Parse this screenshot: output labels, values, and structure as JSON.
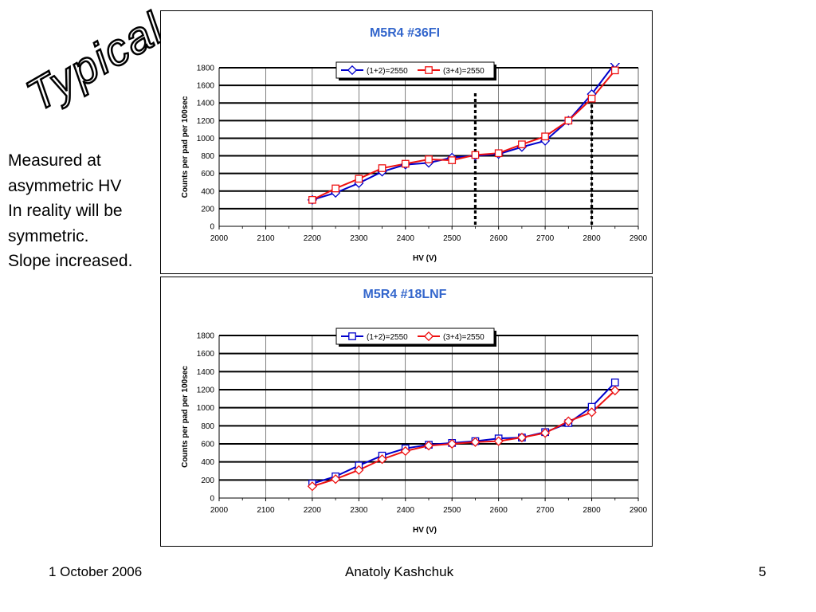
{
  "slide": {
    "title": "Typical",
    "note_lines": [
      "Measured at",
      "asymmetric HV",
      "In reality will be",
      "symmetric.",
      "Slope increased."
    ],
    "footer": {
      "date": "1 October 2006",
      "author": "Anatoly Kashchuk",
      "page": "5"
    }
  },
  "colors": {
    "series_a": "#0000cc",
    "series_b": "#ee1111",
    "title": "#3366cc"
  },
  "chart_data": [
    {
      "type": "line",
      "title": "M5R4 #36FI",
      "xlabel": "HV (V)",
      "ylabel": "Counts  per pad per 100sec",
      "xlim": [
        2000,
        2900
      ],
      "ylim": [
        0,
        1800
      ],
      "x_ticks": [
        2000,
        2100,
        2200,
        2300,
        2400,
        2500,
        2600,
        2700,
        2800,
        2900
      ],
      "y_ticks": [
        0,
        200,
        400,
        600,
        800,
        1000,
        1200,
        1400,
        1600,
        1800
      ],
      "grid": "horizontal",
      "legend_position": "top-center",
      "series": [
        {
          "name": "(1+2)=2550",
          "color": "#0000cc",
          "marker": "diamond",
          "x": [
            2200,
            2250,
            2300,
            2350,
            2400,
            2450,
            2500,
            2550,
            2600,
            2650,
            2700,
            2750,
            2800,
            2850
          ],
          "y": [
            300,
            380,
            490,
            620,
            700,
            720,
            780,
            800,
            820,
            900,
            970,
            1200,
            1500,
            1850
          ]
        },
        {
          "name": "(3+4)=2550",
          "color": "#ee1111",
          "marker": "square",
          "x": [
            2200,
            2250,
            2300,
            2350,
            2400,
            2450,
            2500,
            2550,
            2600,
            2650,
            2700,
            2750,
            2800,
            2850
          ],
          "y": [
            300,
            430,
            540,
            660,
            710,
            760,
            750,
            810,
            830,
            930,
            1020,
            1200,
            1450,
            1770
          ]
        }
      ],
      "vertical_markers": [
        2550,
        2800
      ]
    },
    {
      "type": "line",
      "title": "M5R4 #18LNF",
      "xlabel": "HV (V)",
      "ylabel": "Counts  per pad per 100sec",
      "xlim": [
        2000,
        2900
      ],
      "ylim": [
        0,
        1800
      ],
      "x_ticks": [
        2000,
        2100,
        2200,
        2300,
        2400,
        2500,
        2600,
        2700,
        2800,
        2900
      ],
      "y_ticks": [
        0,
        200,
        400,
        600,
        800,
        1000,
        1200,
        1400,
        1600,
        1800
      ],
      "grid": "horizontal",
      "legend_position": "top-center",
      "series": [
        {
          "name": "(1+2)=2550",
          "color": "#0000cc",
          "marker": "square",
          "x": [
            2200,
            2250,
            2300,
            2350,
            2400,
            2450,
            2500,
            2550,
            2600,
            2650,
            2700,
            2750,
            2800,
            2850
          ],
          "y": [
            160,
            240,
            360,
            470,
            550,
            590,
            610,
            630,
            660,
            670,
            730,
            830,
            1010,
            1280
          ]
        },
        {
          "name": "(3+4)=2550",
          "color": "#ee1111",
          "marker": "diamond",
          "x": [
            2200,
            2250,
            2300,
            2350,
            2400,
            2450,
            2500,
            2550,
            2600,
            2650,
            2700,
            2750,
            2800,
            2850
          ],
          "y": [
            130,
            210,
            310,
            430,
            520,
            580,
            600,
            620,
            630,
            670,
            720,
            850,
            950,
            1190
          ]
        }
      ],
      "vertical_markers": []
    }
  ]
}
